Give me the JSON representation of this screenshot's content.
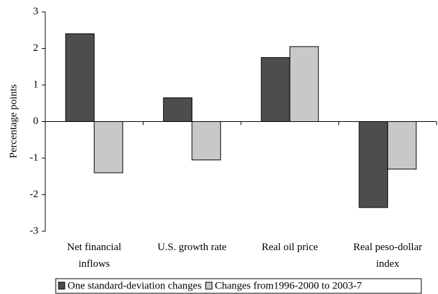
{
  "chart_data": {
    "type": "bar",
    "ylabel": "Percentage points",
    "categories": [
      "Net financial inflows",
      "U.S. growth rate",
      "Real oil price",
      "Real peso-dollar index"
    ],
    "series": [
      {
        "name": "One standard-deviation changes",
        "color": "#4d4d4d",
        "values": [
          2.4,
          0.65,
          1.75,
          -2.35
        ]
      },
      {
        "name": "Changes from1996-2000 to 2003-7",
        "color": "#c8c8c8",
        "values": [
          -1.4,
          -1.05,
          2.05,
          -1.3
        ]
      }
    ],
    "ylim": [
      -3,
      3
    ],
    "yticks": [
      -3,
      -2,
      -1,
      0,
      1,
      2,
      3
    ],
    "grid": false,
    "legend": "bottom"
  }
}
